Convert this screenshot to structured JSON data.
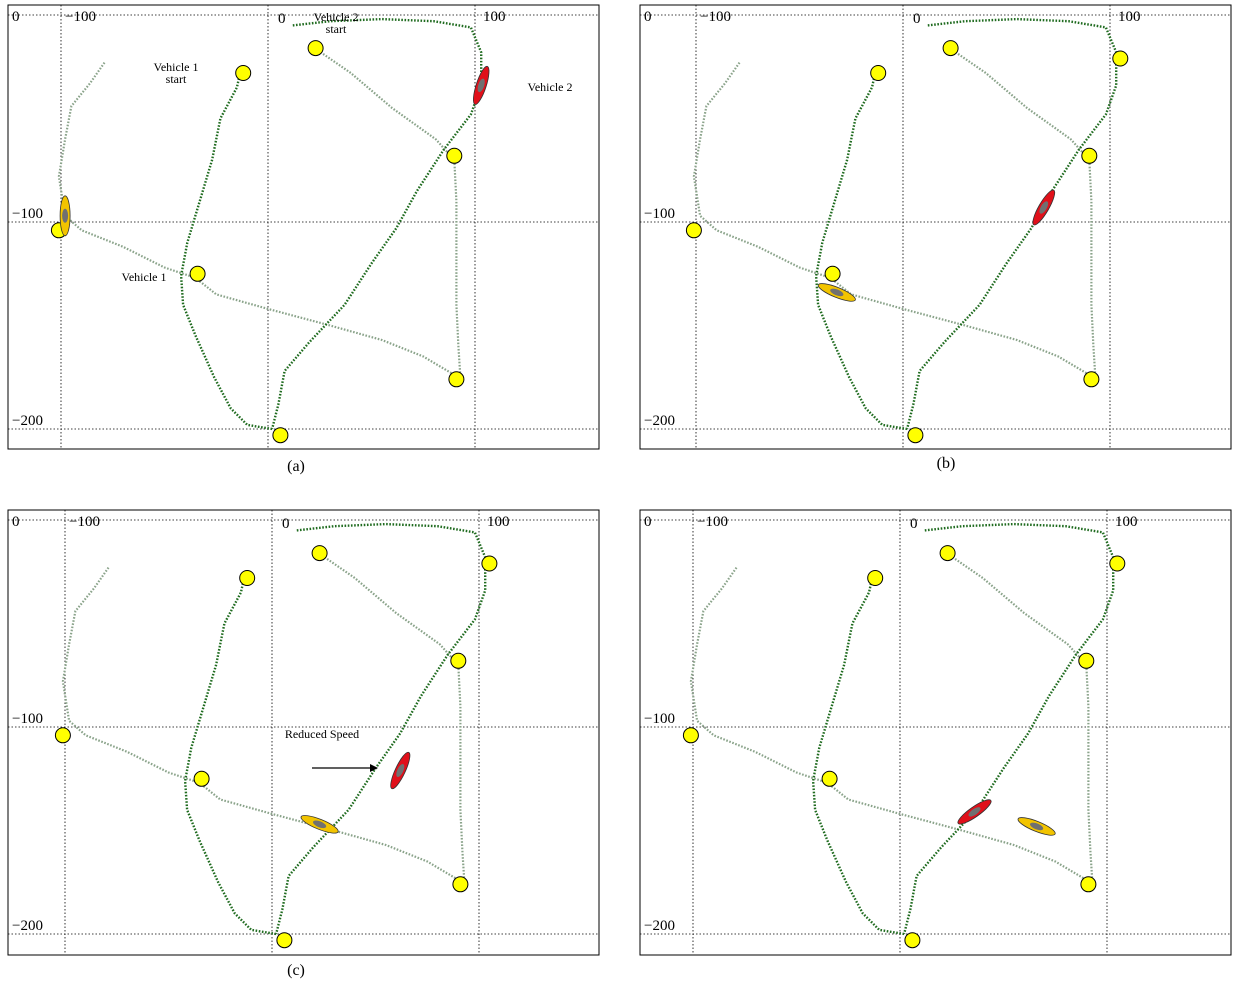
{
  "panels": [
    {
      "id": "a",
      "caption": "(a)",
      "ticks": {
        "x_left": "0",
        "x_minus100": "−100",
        "x_zero": "0",
        "x_100": "100",
        "y_minus100": "−100",
        "y_minus200": "−200"
      },
      "annotations": [
        {
          "id": "vehicle-2-start-label",
          "lines": [
            "Vehicle 2",
            "start"
          ]
        },
        {
          "id": "vehicle-1-start-label",
          "lines": [
            "Vehicle 1",
            "start"
          ]
        },
        {
          "id": "vehicle-2-label",
          "lines": [
            "Vehicle 2"
          ]
        },
        {
          "id": "vehicle-1-label",
          "lines": [
            "Vehicle 1"
          ]
        }
      ],
      "vehicle1_position": [
        -98,
        -97
      ],
      "vehicle2_position": [
        103,
        -34
      ]
    },
    {
      "id": "b",
      "caption": "(b)",
      "ticks": {
        "x_left": "0",
        "x_minus100": "−100",
        "x_zero": "0",
        "x_100": "100",
        "y_minus100": "−100",
        "y_minus200": "−200"
      },
      "annotations": [],
      "vehicle1_position": [
        -32,
        -134
      ],
      "vehicle2_position": [
        68,
        -93
      ]
    },
    {
      "id": "c",
      "caption": "(c)",
      "ticks": {
        "x_left": "0",
        "x_minus100": "−100",
        "x_zero": "0",
        "x_100": "100",
        "y_minus100": "−100",
        "y_minus200": "−200"
      },
      "annotations": [
        {
          "id": "reduced-speed-label",
          "lines": [
            "Reduced Speed"
          ]
        }
      ],
      "vehicle1_position": [
        23,
        -147
      ],
      "vehicle2_position": [
        62,
        -121
      ]
    },
    {
      "id": "d",
      "caption": "",
      "ticks": {
        "x_left": "0",
        "x_minus100": "−100",
        "x_zero": "0",
        "x_100": "100",
        "y_minus100": "−100",
        "y_minus200": "−200"
      },
      "annotations": [],
      "vehicle1_position": [
        66,
        -148
      ],
      "vehicle2_position": [
        36,
        -141
      ]
    }
  ],
  "vehicle1_route": [
    [
      -79,
      -23
    ],
    [
      -86,
      -33
    ],
    [
      -95,
      -44
    ],
    [
      -98,
      -60
    ],
    [
      -101,
      -78
    ],
    [
      -98,
      -97
    ],
    [
      -90,
      -104
    ],
    [
      -70,
      -112
    ],
    [
      -50,
      -122
    ],
    [
      -35,
      -127
    ],
    [
      -25,
      -135
    ],
    [
      0,
      -142
    ],
    [
      30,
      -150
    ],
    [
      55,
      -157
    ],
    [
      75,
      -165
    ],
    [
      92,
      -175
    ],
    [
      93,
      -176
    ]
  ],
  "vehicle1_route_tail": [
    [
      93,
      -176
    ],
    [
      92,
      -160
    ],
    [
      91,
      -140
    ],
    [
      91,
      -115
    ],
    [
      91,
      -90
    ],
    [
      90,
      -70
    ],
    [
      81,
      -60
    ],
    [
      60,
      -45
    ],
    [
      40,
      -28
    ],
    [
      24,
      -17
    ],
    [
      23,
      -16
    ]
  ],
  "vehicle2_route": [
    [
      12,
      -5
    ],
    [
      30,
      -3
    ],
    [
      55,
      -2
    ],
    [
      80,
      -3
    ],
    [
      98,
      -6
    ],
    [
      103,
      -18
    ],
    [
      103,
      -34
    ],
    [
      98,
      -48
    ],
    [
      85,
      -65
    ],
    [
      72,
      -85
    ],
    [
      62,
      -103
    ],
    [
      50,
      -120
    ],
    [
      37,
      -140
    ],
    [
      20,
      -158
    ],
    [
      8,
      -172
    ],
    [
      5,
      -188
    ],
    [
      2,
      -200
    ]
  ],
  "vehicle2_route_tail": [
    [
      2,
      -200
    ],
    [
      -10,
      -198
    ],
    [
      -18,
      -190
    ],
    [
      -26,
      -175
    ],
    [
      -35,
      -155
    ],
    [
      -41,
      -140
    ],
    [
      -42,
      -126
    ],
    [
      -39,
      -110
    ],
    [
      -33,
      -90
    ],
    [
      -27,
      -70
    ],
    [
      -23,
      -50
    ],
    [
      -15,
      -35
    ],
    [
      -13,
      -26
    ]
  ],
  "waypoints": [
    [
      -101,
      -104
    ],
    [
      -34,
      -125
    ],
    [
      -12,
      -28
    ],
    [
      23,
      -16
    ],
    [
      90,
      -68
    ],
    [
      91,
      -176
    ],
    [
      6,
      -203
    ]
  ],
  "waypoint_extra_c_d": [
    [
      105,
      -21
    ]
  ],
  "colors": {
    "vehicle1_route": "#8aa38a",
    "vehicle2_route": "#1f6b1f",
    "waypoint_fill": "#ffff00",
    "vehicle1_body": "#f2c400",
    "vehicle2_body": "#e0101a",
    "vehicle_core": "#707070",
    "grid": "#000000"
  }
}
